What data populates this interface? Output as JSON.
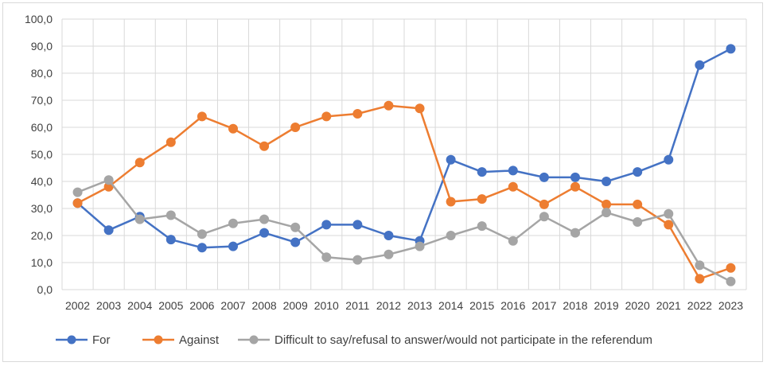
{
  "chart_data": {
    "type": "line",
    "title": "",
    "xlabel": "",
    "ylabel": "",
    "ylim": [
      0,
      100
    ],
    "ytick_step": 10,
    "ytick_labels": [
      "0,0",
      "10,0",
      "20,0",
      "30,0",
      "40,0",
      "50,0",
      "60,0",
      "70,0",
      "80,0",
      "90,0",
      "100,0"
    ],
    "grid": true,
    "legend_position": "bottom",
    "categories": [
      "2002",
      "2003",
      "2004",
      "2005",
      "2006",
      "2007",
      "2008",
      "2009",
      "2010",
      "2011",
      "2012",
      "2013",
      "2014",
      "2015",
      "2016",
      "2017",
      "2018",
      "2019",
      "2020",
      "2021",
      "2022",
      "2023"
    ],
    "series": [
      {
        "name": "For",
        "color": "#4472C4",
        "values": [
          32,
          22,
          27,
          18.5,
          15.5,
          16,
          21,
          17.5,
          24,
          24,
          20,
          18,
          48,
          43.5,
          44,
          41.5,
          41.5,
          40,
          43.5,
          48,
          83,
          89
        ]
      },
      {
        "name": "Against",
        "color": "#ED7D31",
        "values": [
          32,
          38,
          47,
          54.5,
          64,
          59.5,
          53,
          60,
          64,
          65,
          68,
          67,
          32.5,
          33.5,
          38,
          31.5,
          38,
          31.5,
          31.5,
          24,
          4,
          8
        ]
      },
      {
        "name": "Difficult to say/refusal to answer/would not participate in the referendum",
        "color": "#A5A5A5",
        "values": [
          36,
          40.5,
          26,
          27.5,
          20.5,
          24.5,
          26,
          23,
          12,
          11,
          13,
          16,
          20,
          23.5,
          18,
          27,
          21,
          28.5,
          25,
          28,
          9,
          3
        ]
      }
    ]
  }
}
